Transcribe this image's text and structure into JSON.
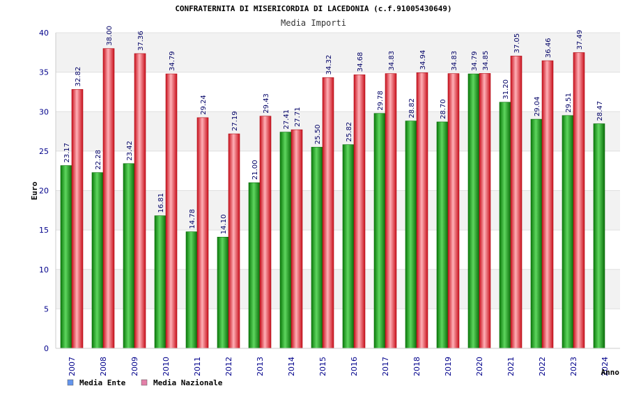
{
  "chart_data": {
    "type": "bar",
    "title": "CONFRATERNITA DI MISERICORDIA DI LACEDONIA (c.f.91005430649)",
    "subtitle": "Media Importi",
    "ylabel": "Euro",
    "xlabel": "Anno",
    "ylim": [
      0,
      40
    ],
    "yticks": [
      0,
      5,
      10,
      15,
      20,
      25,
      30,
      35,
      40
    ],
    "categories": [
      "2007",
      "2008",
      "2009",
      "2010",
      "2011",
      "2012",
      "2013",
      "2014",
      "2015",
      "2016",
      "2017",
      "2018",
      "2019",
      "2020",
      "2021",
      "2022",
      "2023",
      "2024"
    ],
    "series": [
      {
        "name": "Media Ente",
        "color": "#1fa31f",
        "legend_color": "#6495ed",
        "values": [
          23.17,
          22.28,
          23.42,
          16.81,
          14.78,
          14.1,
          21.0,
          27.41,
          25.5,
          25.82,
          29.78,
          28.82,
          28.7,
          34.79,
          31.2,
          29.04,
          29.51,
          28.47
        ],
        "labels": [
          "23.17",
          "22.28",
          "23.42",
          "16.81",
          "14.78",
          "14.10",
          "21.00",
          "27.41",
          "25.50",
          "25.82",
          "29.78",
          "28.82",
          "28.70",
          "34.79",
          "31.20",
          "29.04",
          "29.51",
          "28.47"
        ]
      },
      {
        "name": "Media Nazionale",
        "color": "#e8303a",
        "legend_color": "#e37fa8",
        "values": [
          32.82,
          38.0,
          37.36,
          34.79,
          29.24,
          27.19,
          29.43,
          27.71,
          34.32,
          34.68,
          34.83,
          34.94,
          34.83,
          34.85,
          37.05,
          36.46,
          37.49,
          null
        ],
        "labels": [
          "32.82",
          "38.00",
          "37.36",
          "34.79",
          "29.24",
          "27.19",
          "29.43",
          "27.71",
          "34.32",
          "34.68",
          "34.83",
          "34.94",
          "34.83",
          "34.85",
          "37.05",
          "36.46",
          "37.49",
          ""
        ]
      }
    ],
    "legend_position": "bottom-left",
    "grid": true
  }
}
